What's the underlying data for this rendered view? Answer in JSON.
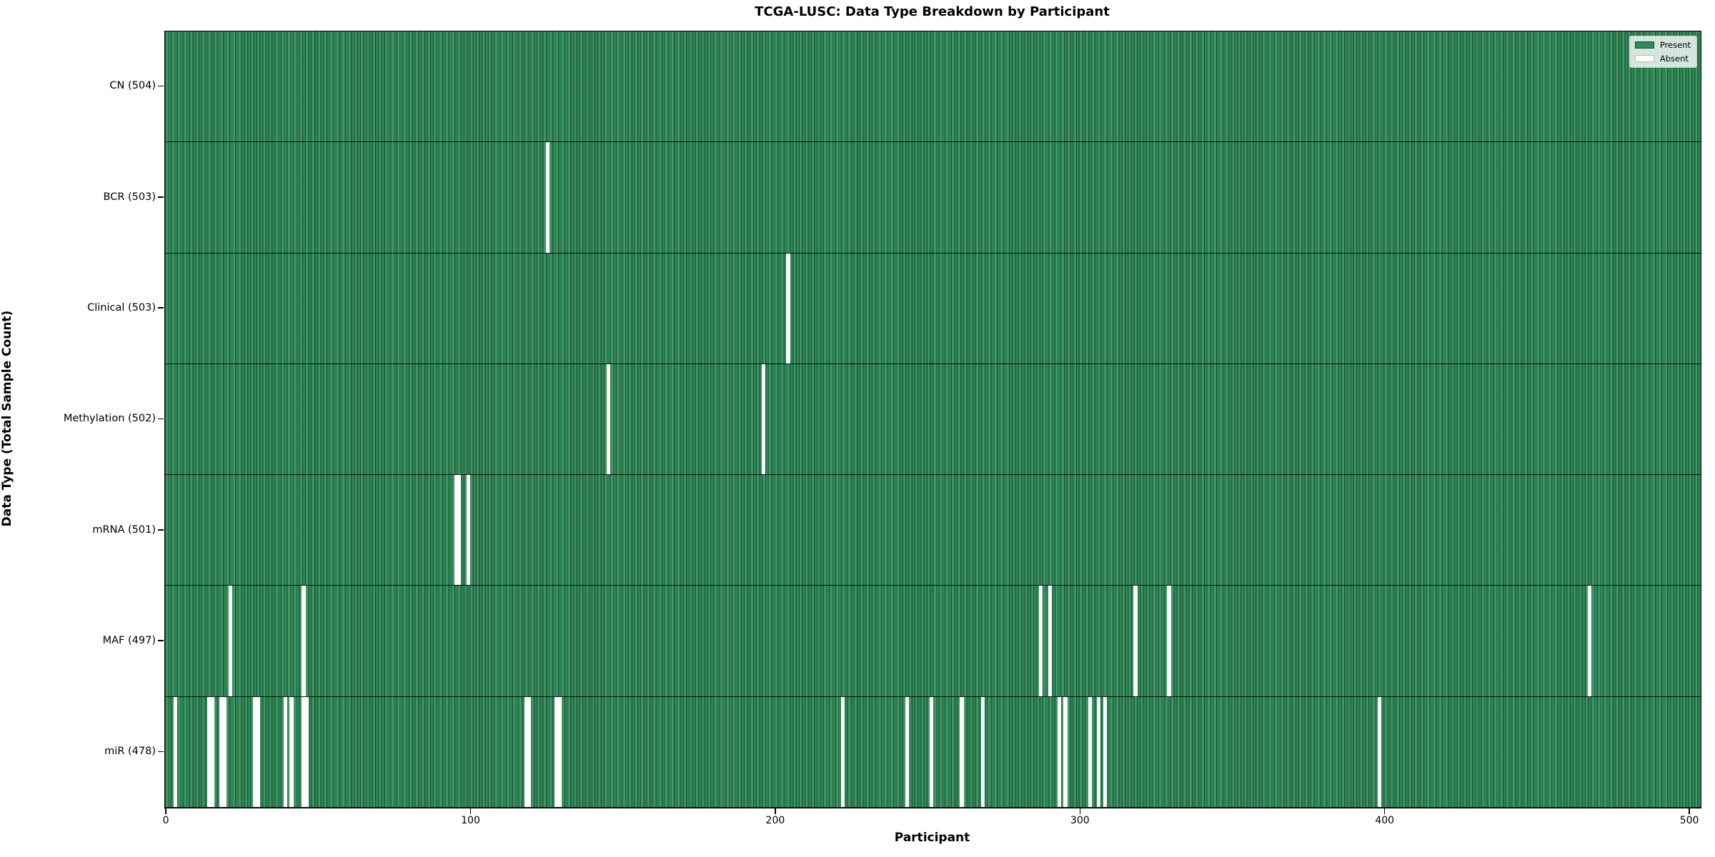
{
  "title": "TCGA-LUSC: Data Type Breakdown by Participant",
  "axes": {
    "xlabel": "Participant",
    "ylabel": "Data Type (Total Sample Count)"
  },
  "legend": {
    "items": [
      {
        "label": "Present",
        "color": "#2e8b57",
        "edge": "#1d4832"
      },
      {
        "label": "Absent",
        "color": "#ffffff",
        "edge": "#bbbbbb"
      }
    ]
  },
  "colors": {
    "present": "#2e8b57",
    "absent": "#ffffff",
    "bar_edge": "#173d2a",
    "separator": "#000000",
    "background": "#ffffff"
  },
  "chart_data": {
    "type": "heatmap",
    "title": "TCGA-LUSC: Data Type Breakdown by Participant",
    "xlabel": "Participant",
    "ylabel": "Data Type (Total Sample Count)",
    "n_participants": 504,
    "x_range": [
      0,
      504
    ],
    "x_ticks": [
      0,
      100,
      200,
      300,
      400,
      500
    ],
    "legend": [
      "Present",
      "Absent"
    ],
    "legend_position": "upper right",
    "grid": false,
    "rows": [
      {
        "label": "CN (504)",
        "name": "CN",
        "total": 504,
        "absent": []
      },
      {
        "label": "BCR (503)",
        "name": "BCR",
        "total": 503,
        "absent": [
          125
        ]
      },
      {
        "label": "Clinical (503)",
        "name": "Clinical",
        "total": 503,
        "absent": [
          204
        ]
      },
      {
        "label": "Methylation (502)",
        "name": "Methylation",
        "total": 502,
        "absent": [
          145,
          196
        ]
      },
      {
        "label": "mRNA (501)",
        "name": "mRNA",
        "total": 501,
        "absent": [
          95,
          96,
          99
        ]
      },
      {
        "label": "MAF (497)",
        "name": "MAF",
        "total": 497,
        "absent": [
          21,
          45,
          287,
          290,
          318,
          329,
          467
        ]
      },
      {
        "label": "miR (478)",
        "name": "miR",
        "total": 478,
        "absent": [
          3,
          14,
          15,
          18,
          19,
          29,
          30,
          39,
          41,
          45,
          46,
          118,
          119,
          128,
          129,
          222,
          243,
          251,
          261,
          268,
          293,
          295,
          303,
          306,
          308,
          398
        ]
      }
    ]
  }
}
